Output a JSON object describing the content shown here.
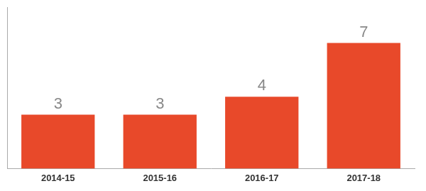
{
  "chart_data": {
    "type": "bar",
    "categories": [
      "2014-15",
      "2015-16",
      "2016-17",
      "2017-18"
    ],
    "values": [
      3,
      3,
      4,
      7
    ],
    "color": "#E8492A",
    "ylim": [
      0,
      9.0
    ],
    "grid": false,
    "data_labels": true,
    "tick_labels": "x"
  }
}
